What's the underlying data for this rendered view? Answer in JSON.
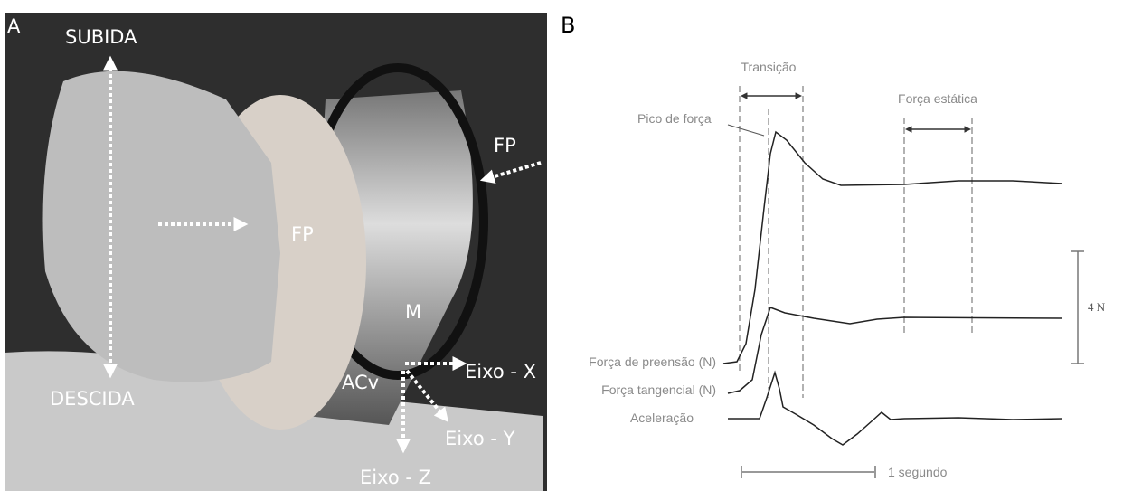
{
  "panel_a": {
    "label": "A",
    "subida": "SUBIDA",
    "descida": "DESCIDA",
    "fp_left": "FP",
    "fp_right": "FP",
    "m": "M",
    "acv": "ACv",
    "eixo_x": "Eixo - X",
    "eixo_y": "Eixo - Y",
    "eixo_z": "Eixo - Z"
  },
  "panel_b": {
    "label": "B",
    "transicao": "Transição",
    "pico": "Pico de força",
    "forca_estatica": "Força estática",
    "scale_force": "4 N",
    "scale_time": "1 segundo",
    "traces": [
      "Força de preensão (N)",
      "Força tangencial (N)",
      "Aceleração"
    ]
  }
}
